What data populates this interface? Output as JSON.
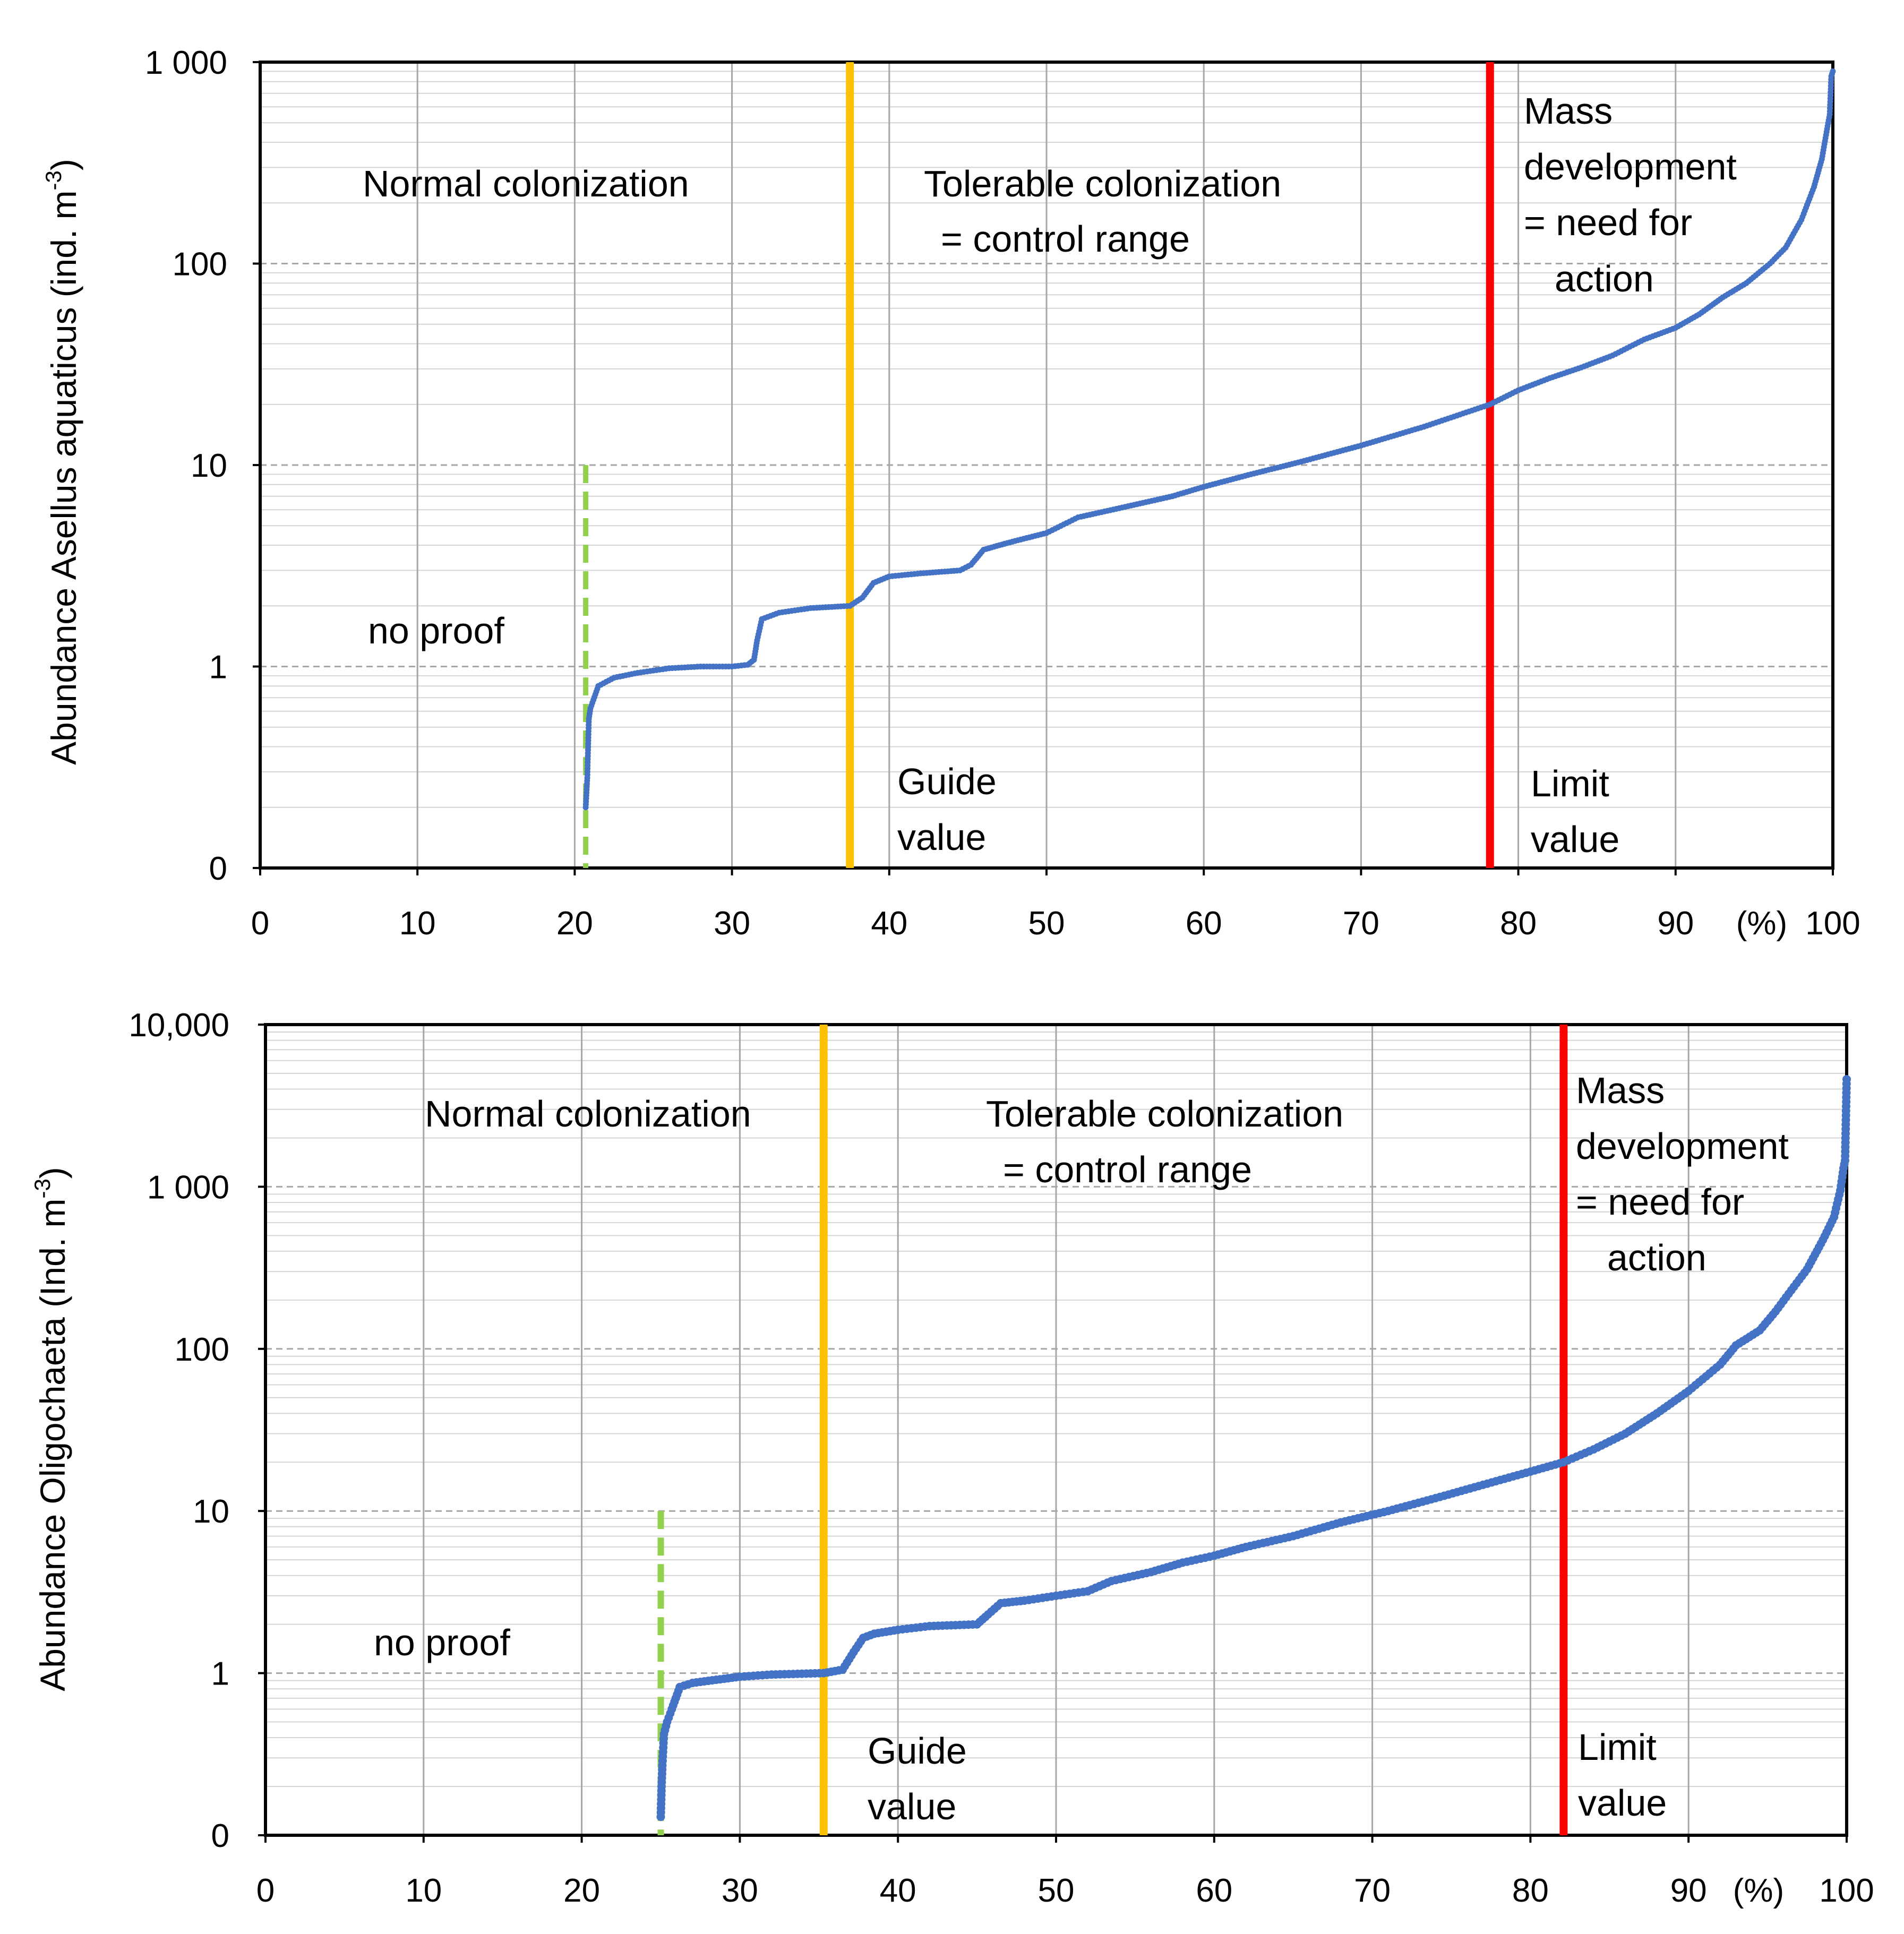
{
  "colors": {
    "series": "#4472c4",
    "guide_line": "#ffc000",
    "limit_line": "#ff0000",
    "no_proof_line": "#92d050"
  },
  "chart_data": [
    {
      "type": "scatter",
      "yscale": "log",
      "ylabel_parts": [
        "Abundance  Asellus aquaticus (ind. m",
        "-3",
        ")"
      ],
      "x_ticks": [
        "0",
        "10",
        "20",
        "30",
        "40",
        "50",
        "60",
        "70",
        "80",
        "90",
        "100"
      ],
      "x_unit_label": "(%)",
      "xlim": [
        0,
        100
      ],
      "y_ticks": [
        {
          "label": "0",
          "value": 0.1
        },
        {
          "label": "1",
          "value": 1
        },
        {
          "label": "10",
          "value": 10
        },
        {
          "label": "100",
          "value": 100
        },
        {
          "label": "1 000",
          "value": 1000
        }
      ],
      "ylim": [
        0.1,
        1000
      ],
      "guide_value_x": 37.5,
      "limit_value_x": 78.2,
      "no_proof_x": 20.7,
      "no_proof_ymax": 10,
      "zone_labels": {
        "normal": [
          "Normal colonization"
        ],
        "tolerable": [
          "Tolerable colonization",
          "= control range"
        ],
        "mass": [
          "Mass",
          "development",
          "= need for",
          "action"
        ],
        "no_proof": [
          "no proof"
        ],
        "guide": [
          "Guide",
          "value"
        ],
        "limit": [
          "Limit",
          "value"
        ]
      },
      "series": [
        {
          "name": "Asellus aquaticus",
          "anchors": [
            [
              20.7,
              0.2
            ],
            [
              20.8,
              0.28
            ],
            [
              20.9,
              0.55
            ],
            [
              21.0,
              0.62
            ],
            [
              21.5,
              0.8
            ],
            [
              22.5,
              0.88
            ],
            [
              24.0,
              0.93
            ],
            [
              26.0,
              0.98
            ],
            [
              28.0,
              1.0
            ],
            [
              30.0,
              1.0
            ],
            [
              31.0,
              1.02
            ],
            [
              31.4,
              1.08
            ],
            [
              31.6,
              1.35
            ],
            [
              31.9,
              1.72
            ],
            [
              33.0,
              1.85
            ],
            [
              35.0,
              1.95
            ],
            [
              37.5,
              2.0
            ],
            [
              38.3,
              2.2
            ],
            [
              39.0,
              2.6
            ],
            [
              40.0,
              2.8
            ],
            [
              42.0,
              2.9
            ],
            [
              44.5,
              3.0
            ],
            [
              45.2,
              3.2
            ],
            [
              46.0,
              3.8
            ],
            [
              47.0,
              4.0
            ],
            [
              48.0,
              4.2
            ],
            [
              50.0,
              4.6
            ],
            [
              52.0,
              5.5
            ],
            [
              55.0,
              6.2
            ],
            [
              58.0,
              7.0
            ],
            [
              60.0,
              7.8
            ],
            [
              63.0,
              9.0
            ],
            [
              66.0,
              10.3
            ],
            [
              70.0,
              12.5
            ],
            [
              74.0,
              15.5
            ],
            [
              78.2,
              20.0
            ],
            [
              80.0,
              23.5
            ],
            [
              82.0,
              27.0
            ],
            [
              84.0,
              30.5
            ],
            [
              86.0,
              35.0
            ],
            [
              88.0,
              42.0
            ],
            [
              90.0,
              48.0
            ],
            [
              91.5,
              56.0
            ],
            [
              93.0,
              68.0
            ],
            [
              94.5,
              80.0
            ],
            [
              96.0,
              100.0
            ],
            [
              97.0,
              120.0
            ],
            [
              98.0,
              165.0
            ],
            [
              98.8,
              240.0
            ],
            [
              99.3,
              330.0
            ],
            [
              99.6,
              450.0
            ],
            [
              99.8,
              550.0
            ],
            [
              99.9,
              850.0
            ],
            [
              100.0,
              900.0
            ]
          ]
        }
      ]
    },
    {
      "type": "scatter",
      "yscale": "log",
      "ylabel_parts": [
        "Abundance Oligochaeta  (Ind. m",
        "-3",
        ")"
      ],
      "x_ticks": [
        "0",
        "10",
        "20",
        "30",
        "40",
        "50",
        "60",
        "70",
        "80",
        "90",
        "100"
      ],
      "x_unit_label": "(%)",
      "xlim": [
        0,
        100
      ],
      "y_ticks": [
        {
          "label": "0",
          "value": 0.1
        },
        {
          "label": "1",
          "value": 1
        },
        {
          "label": "10",
          "value": 10
        },
        {
          "label": "100",
          "value": 100
        },
        {
          "label": "1 000",
          "value": 1000
        },
        {
          "label": "10,000",
          "value": 10000
        }
      ],
      "ylim": [
        0.1,
        10000
      ],
      "guide_value_x": 35.3,
      "limit_value_x": 82.1,
      "no_proof_x": 25.0,
      "no_proof_ymax": 10,
      "zone_labels": {
        "normal": [
          "Normal colonization"
        ],
        "tolerable": [
          "Tolerable colonization",
          "= control range"
        ],
        "mass": [
          "Mass",
          "development",
          "= need for",
          "action"
        ],
        "no_proof": [
          "no proof"
        ],
        "guide": [
          "Guide",
          "value"
        ],
        "limit": [
          "Limit",
          "value"
        ]
      },
      "series": [
        {
          "name": "Oligochaeta",
          "anchors": [
            [
              25.0,
              0.13
            ],
            [
              25.05,
              0.2
            ],
            [
              25.1,
              0.27
            ],
            [
              25.2,
              0.42
            ],
            [
              25.4,
              0.5
            ],
            [
              25.7,
              0.6
            ],
            [
              26.2,
              0.82
            ],
            [
              27.0,
              0.87
            ],
            [
              28.5,
              0.91
            ],
            [
              30.0,
              0.95
            ],
            [
              32.0,
              0.98
            ],
            [
              35.3,
              1.0
            ],
            [
              36.5,
              1.05
            ],
            [
              37.2,
              1.35
            ],
            [
              37.8,
              1.65
            ],
            [
              38.5,
              1.75
            ],
            [
              40.0,
              1.85
            ],
            [
              42.0,
              1.95
            ],
            [
              45.0,
              2.0
            ],
            [
              45.7,
              2.3
            ],
            [
              46.5,
              2.7
            ],
            [
              48.0,
              2.8
            ],
            [
              50.0,
              3.0
            ],
            [
              52.0,
              3.2
            ],
            [
              53.5,
              3.7
            ],
            [
              56.0,
              4.2
            ],
            [
              58.0,
              4.8
            ],
            [
              60.0,
              5.3
            ],
            [
              62.0,
              6.0
            ],
            [
              65.0,
              7.0
            ],
            [
              68.0,
              8.5
            ],
            [
              71.0,
              10.0
            ],
            [
              74.0,
              12.0
            ],
            [
              77.0,
              14.5
            ],
            [
              80.0,
              17.5
            ],
            [
              82.1,
              20.0
            ],
            [
              84.0,
              24.0
            ],
            [
              86.0,
              30.0
            ],
            [
              88.0,
              40.0
            ],
            [
              90.0,
              55.0
            ],
            [
              92.0,
              80.0
            ],
            [
              93.0,
              105.0
            ],
            [
              94.5,
              130.0
            ],
            [
              95.5,
              170.0
            ],
            [
              96.5,
              230.0
            ],
            [
              97.5,
              310.0
            ],
            [
              98.5,
              470.0
            ],
            [
              99.2,
              650.0
            ],
            [
              99.6,
              950.0
            ],
            [
              99.8,
              1300.0
            ],
            [
              99.9,
              1450.0
            ],
            [
              100.0,
              4600.0
            ]
          ]
        }
      ]
    }
  ]
}
